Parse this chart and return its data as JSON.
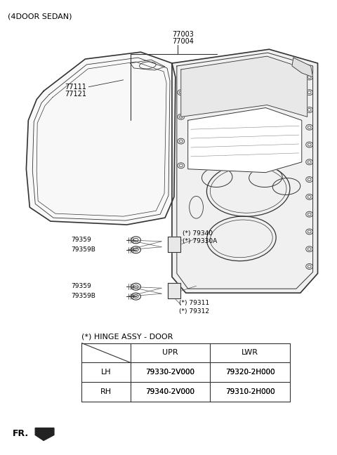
{
  "title": "(4DOOR SEDAN)",
  "bg_color": "#ffffff",
  "line_color": "#333333",
  "text_color": "#000000",
  "label_color": "#000000",
  "fig_width": 4.8,
  "fig_height": 6.48,
  "dpi": 100,
  "table_title": "(*) HINGE ASSY - DOOR",
  "table_col_headers": [
    "UPR",
    "LWR"
  ],
  "table_row_headers": [
    "LH",
    "RH"
  ],
  "table_data": [
    [
      "79330-2V000",
      "79320-2H000"
    ],
    [
      "79340-2V000",
      "79310-2H000"
    ]
  ]
}
